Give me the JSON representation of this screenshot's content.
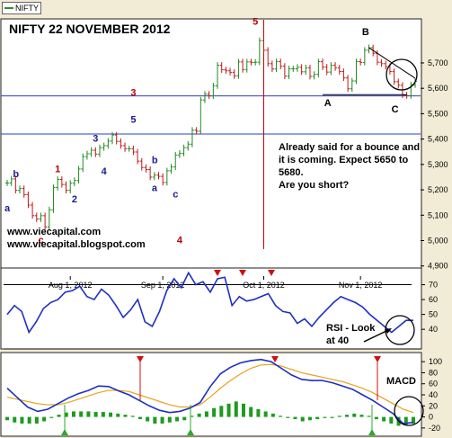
{
  "chart_data": {
    "type": "line",
    "title": "NIFTY 22 NOVEMBER 2012",
    "legend_label": "NIFTY",
    "x_ticks": [
      "Aug 1, 2012",
      "Sep 1, 2012",
      "Oct 1, 2012",
      "Nov 1, 2012"
    ],
    "price_panel": {
      "ylim": [
        4860,
        5870
      ],
      "y_ticks": [
        4900,
        5000,
        5100,
        5200,
        5300,
        5400,
        5500,
        5600,
        5700
      ],
      "y_tick_labels": [
        "4,900",
        "5,000",
        "5,100",
        "5,200",
        "5,300",
        "5,400",
        "5,500",
        "5,600",
        "5,700"
      ],
      "series": [
        {
          "style": "ohlc_bars",
          "values": [
            5227,
            5243,
            5198,
            5205,
            5181,
            5140,
            5098,
            5085,
            5098,
            5054,
            5121,
            5209,
            5241,
            5221,
            5198,
            5226,
            5237,
            5282,
            5331,
            5342,
            5356,
            5341,
            5366,
            5374,
            5392,
            5416,
            5391,
            5374,
            5362,
            5362,
            5349,
            5313,
            5288,
            5280,
            5250,
            5258,
            5253,
            5229,
            5275,
            5290,
            5337,
            5344,
            5366,
            5380,
            5435,
            5431,
            5554,
            5577,
            5570,
            5610,
            5691,
            5673,
            5669,
            5663,
            5649,
            5704,
            5674,
            5704,
            5702,
            5703,
            5788,
            5750,
            5697,
            5676,
            5705,
            5687,
            5648,
            5677,
            5677,
            5683,
            5665,
            5681,
            5647,
            5655,
            5705,
            5684,
            5664,
            5691,
            5681,
            5666,
            5641,
            5598,
            5629,
            5705,
            5702,
            5750,
            5760,
            5738,
            5703,
            5697,
            5686,
            5666,
            5626,
            5612,
            5574,
            5571,
            5614,
            5627
          ]
        }
      ],
      "horizontal_levels": [
        5570,
        5420
      ],
      "vertical_marker_x_index": 61,
      "trendline_upper": [
        [
          86,
          5760
        ],
        [
          97,
          5640
        ]
      ],
      "trendline_neckline": [
        [
          75,
          5575
        ],
        [
          95,
          5575
        ]
      ]
    },
    "wave_labels": [
      {
        "text": "a",
        "x_index": 0,
        "y": 5115,
        "color": "#1b1b8f"
      },
      {
        "text": "b",
        "x_index": 2,
        "y": 5250,
        "color": "#1b1b8f"
      },
      {
        "text": "c",
        "x_index": 8,
        "y": 4990,
        "color": "#b00000"
      },
      {
        "text": "1",
        "x_index": 12,
        "y": 5270,
        "color": "#b00000"
      },
      {
        "text": "2",
        "x_index": 16,
        "y": 5150,
        "color": "#1b1b8f"
      },
      {
        "text": "3",
        "x_index": 21,
        "y": 5390,
        "color": "#1b1b8f"
      },
      {
        "text": "4",
        "x_index": 23,
        "y": 5260,
        "color": "#1b1b8f"
      },
      {
        "text": "3",
        "x_index": 30,
        "y": 5570,
        "color": "#b00000"
      },
      {
        "text": "5",
        "x_index": 30,
        "y": 5465,
        "color": "#1b1b8f"
      },
      {
        "text": "b",
        "x_index": 35,
        "y": 5305,
        "color": "#1b1b8f"
      },
      {
        "text": "a",
        "x_index": 35,
        "y": 5195,
        "color": "#1b1b8f"
      },
      {
        "text": "c",
        "x_index": 40,
        "y": 5170,
        "color": "#1b1b8f"
      },
      {
        "text": "4",
        "x_index": 41,
        "y": 4990,
        "color": "#b00000"
      },
      {
        "text": "5",
        "x_index": 59,
        "y": 5850,
        "color": "#b00000"
      },
      {
        "text": "A",
        "x_index": 76,
        "y": 5530,
        "color": "#000000"
      },
      {
        "text": "B",
        "x_index": 85,
        "y": 5810,
        "color": "#000000"
      },
      {
        "text": "C",
        "x_index": 92,
        "y": 5505,
        "color": "#000000"
      }
    ],
    "annotation_text": [
      "Already said for a bounce and",
      "it is coming. Expect 5650 to",
      "5680.",
      "Are you short?"
    ],
    "source_text": [
      "www.viecapital.com",
      "www.viecapital.blogspot.com"
    ],
    "rsi_panel": {
      "ylim": [
        28,
        80
      ],
      "y_ticks": [
        40,
        50,
        60,
        70
      ],
      "reference_line": 70,
      "series": [
        {
          "values": [
            50,
            56,
            52,
            38,
            45,
            54,
            58,
            60,
            65,
            66,
            69,
            62,
            60,
            67,
            63,
            56,
            48,
            53,
            60,
            45,
            42,
            52,
            66,
            74,
            68,
            78,
            70,
            72,
            65,
            74,
            75,
            56,
            62,
            59,
            60,
            62,
            64,
            56,
            52,
            51,
            44,
            47,
            42,
            48,
            53,
            58,
            62,
            60,
            58,
            55,
            50,
            46,
            42,
            38,
            42,
            46,
            46
          ]
        }
      ],
      "annotation": [
        "RSI - Look",
        "at 40"
      ]
    },
    "macd_panel": {
      "ylim": [
        -30,
        110
      ],
      "y_ticks": [
        -20,
        0,
        20,
        40,
        60,
        80,
        100
      ],
      "macd_label": "MACD",
      "macd_line": [
        52,
        35,
        18,
        10,
        14,
        24,
        34,
        42,
        48,
        56,
        55,
        47,
        40,
        30,
        20,
        12,
        8,
        10,
        16,
        26,
        55,
        78,
        90,
        98,
        102,
        104,
        100,
        88,
        76,
        68,
        66,
        66,
        62,
        56,
        50,
        40,
        30,
        18,
        6,
        -12,
        -10
      ],
      "signal_line": [
        36,
        32,
        28,
        24,
        22,
        22,
        26,
        32,
        38,
        44,
        48,
        48,
        46,
        40,
        34,
        28,
        22,
        18,
        18,
        22,
        36,
        52,
        66,
        78,
        88,
        94,
        95,
        92,
        86,
        80,
        76,
        72,
        68,
        64,
        58,
        52,
        44,
        34,
        24,
        14,
        8
      ],
      "histogram": [
        -6,
        -10,
        -12,
        -12,
        -12,
        -8,
        -2,
        4,
        8,
        10,
        10,
        10,
        9,
        9,
        8,
        6,
        4,
        2,
        -4,
        -8,
        -12,
        -12,
        -10,
        -8,
        -6,
        2,
        6,
        10,
        16,
        20,
        24,
        28,
        24,
        18,
        14,
        10,
        6,
        2,
        -2,
        -4,
        -8,
        -6,
        -4,
        -2,
        -2,
        2,
        4,
        6,
        4,
        2,
        -4,
        -8,
        -12,
        -16,
        -14,
        -12
      ]
    }
  }
}
